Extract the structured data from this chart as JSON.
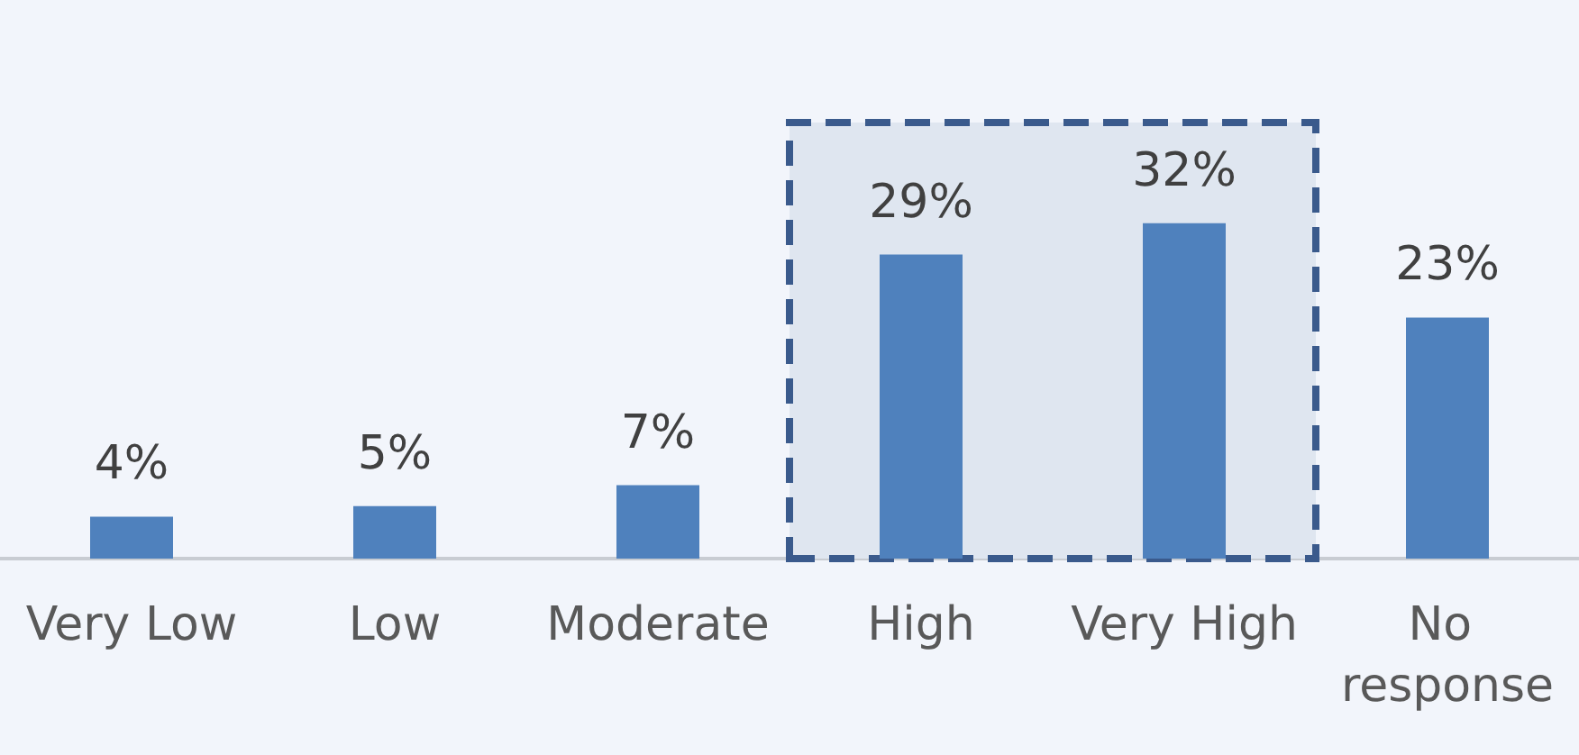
{
  "chart_data": {
    "type": "bar",
    "categories": [
      "Very Low",
      "Low",
      "Moderate",
      "High",
      "Very High",
      "No response"
    ],
    "values": [
      4,
      5,
      7,
      29,
      32,
      23
    ],
    "value_labels": [
      "4%",
      "5%",
      "7%",
      "29%",
      "32%",
      "23%"
    ],
    "color": "#4f81bd",
    "bands": [
      {
        "axis": "x",
        "from": "High",
        "to": "Very High",
        "color": "#dfe6f0"
      }
    ],
    "grid": false
  }
}
